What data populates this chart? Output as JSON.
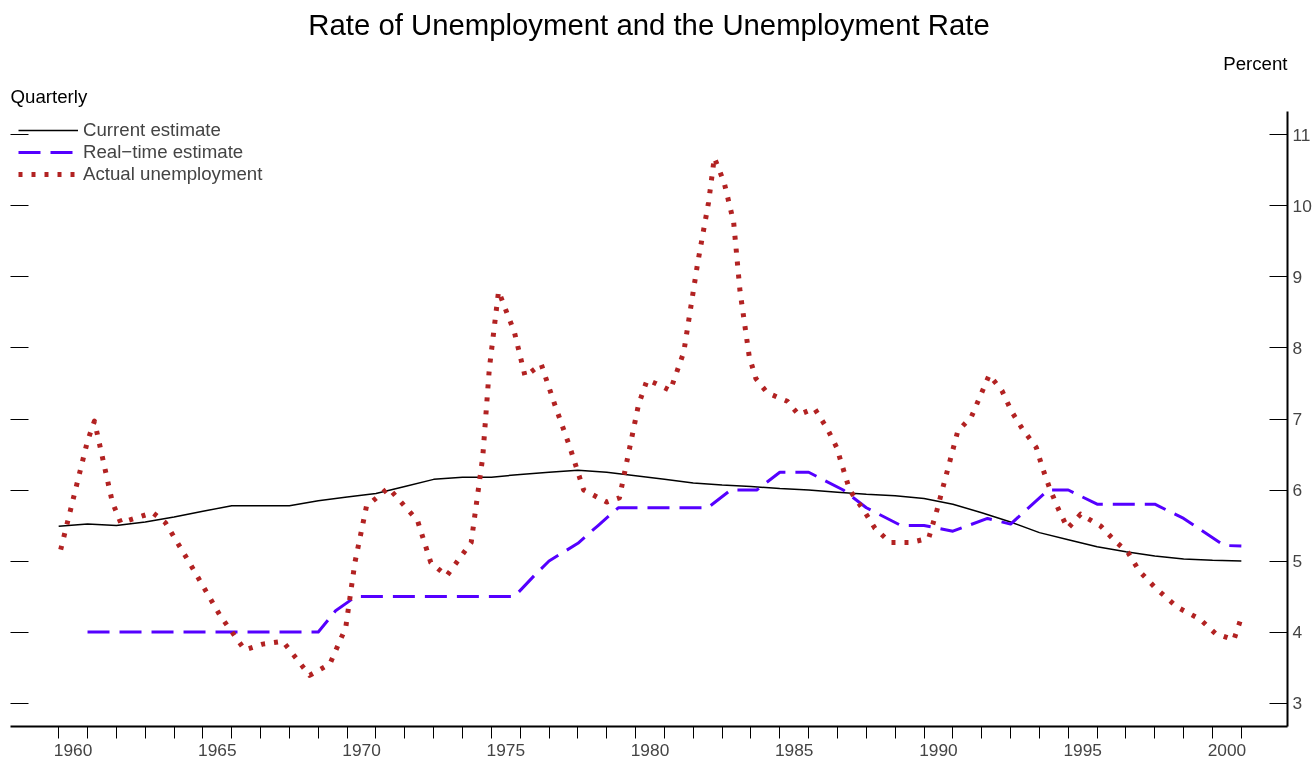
{
  "chart_data": {
    "type": "line",
    "title": "Rate of Unemployment and the Unemployment Rate",
    "ylabel": "Percent",
    "annotations": [
      "Quarterly"
    ],
    "xlim": [
      1958.33,
      2002.6
    ],
    "ylim": [
      2.67,
      11.33
    ],
    "xticks": [
      {
        "value": 1960,
        "label": null
      },
      {
        "value": 1961,
        "label": null
      },
      {
        "value": 1962,
        "label": null
      },
      {
        "value": 1963,
        "label": null
      },
      {
        "value": 1964,
        "label": null
      },
      {
        "value": 1965,
        "label": null
      },
      {
        "value": 1966,
        "label": null
      },
      {
        "value": 1967,
        "label": null
      },
      {
        "value": 1968,
        "label": null
      },
      {
        "value": 1969,
        "label": null
      },
      {
        "value": 1970,
        "label": null
      },
      {
        "value": 1971,
        "label": null
      },
      {
        "value": 1972,
        "label": null
      },
      {
        "value": 1973,
        "label": null
      },
      {
        "value": 1974,
        "label": null
      },
      {
        "value": 1975,
        "label": null
      },
      {
        "value": 1976,
        "label": null
      },
      {
        "value": 1977,
        "label": null
      },
      {
        "value": 1978,
        "label": null
      },
      {
        "value": 1979,
        "label": null
      },
      {
        "value": 1980,
        "label": null
      },
      {
        "value": 1981,
        "label": null
      },
      {
        "value": 1982,
        "label": null
      },
      {
        "value": 1983,
        "label": null
      },
      {
        "value": 1984,
        "label": null
      },
      {
        "value": 1985,
        "label": null
      },
      {
        "value": 1986,
        "label": null
      },
      {
        "value": 1987,
        "label": null
      },
      {
        "value": 1988,
        "label": null
      },
      {
        "value": 1989,
        "label": null
      },
      {
        "value": 1990,
        "label": null
      },
      {
        "value": 1991,
        "label": null
      },
      {
        "value": 1992,
        "label": null
      },
      {
        "value": 1993,
        "label": null
      },
      {
        "value": 1994,
        "label": null
      },
      {
        "value": 1995,
        "label": null
      },
      {
        "value": 1996,
        "label": null
      },
      {
        "value": 1997,
        "label": null
      },
      {
        "value": 1998,
        "label": null
      },
      {
        "value": 1999,
        "label": null
      },
      {
        "value": 2000,
        "label": null
      },
      {
        "value": 2001,
        "label": null
      },
      {
        "value": 1960.5,
        "label": "1960"
      },
      {
        "value": 1965.5,
        "label": "1965"
      },
      {
        "value": 1970.5,
        "label": "1970"
      },
      {
        "value": 1975.5,
        "label": "1975"
      },
      {
        "value": 1980.5,
        "label": "1980"
      },
      {
        "value": 1985.5,
        "label": "1985"
      },
      {
        "value": 1990.5,
        "label": "1990"
      },
      {
        "value": 1995.5,
        "label": "1995"
      },
      {
        "value": 2000.5,
        "label": "2000"
      }
    ],
    "yticks": [
      3,
      4,
      5,
      6,
      7,
      8,
      9,
      10,
      11
    ],
    "grid": false,
    "legend": "top left",
    "series": [
      {
        "name": "Current estimate",
        "color": "#000000",
        "line_style": "solid",
        "x": [
          1960,
          1961,
          1962,
          1963,
          1964,
          1965,
          1966,
          1967,
          1968,
          1969,
          1970,
          1971,
          1972,
          1973,
          1974,
          1975,
          1976,
          1977,
          1978,
          1979,
          1980,
          1981,
          1982,
          1983,
          1984,
          1985,
          1986,
          1987,
          1988,
          1989,
          1990,
          1991,
          1992,
          1993,
          1994,
          1995,
          1996,
          1997,
          1998,
          1999,
          2000,
          2001
        ],
        "values": [
          5.49,
          5.52,
          5.5,
          5.55,
          5.62,
          5.7,
          5.78,
          5.78,
          5.78,
          5.85,
          5.9,
          5.95,
          6.05,
          6.15,
          6.18,
          6.18,
          6.22,
          6.25,
          6.28,
          6.25,
          6.2,
          6.15,
          6.1,
          6.07,
          6.05,
          6.02,
          6.0,
          5.97,
          5.94,
          5.92,
          5.88,
          5.8,
          5.68,
          5.55,
          5.4,
          5.3,
          5.2,
          5.13,
          5.07,
          5.03,
          5.01,
          5.0
        ]
      },
      {
        "name": "Real−time estimate",
        "color": "#5500ff",
        "line_style": "dashed",
        "x": [
          1961,
          1969,
          1969.6,
          1970.3,
          1975.8,
          1976.5,
          1977,
          1978,
          1978.7,
          1979.4,
          1982.5,
          1983.3,
          1984.2,
          1985,
          1986,
          1987.2,
          1988,
          1989.2,
          1990,
          1991,
          1992.2,
          1993,
          1994.3,
          1995,
          1996,
          1998,
          1999,
          2000.4,
          2001
        ],
        "values": [
          4.0,
          4.0,
          4.3,
          4.5,
          4.5,
          4.8,
          5.0,
          5.25,
          5.5,
          5.75,
          5.75,
          6.0,
          6.0,
          6.25,
          6.25,
          6.0,
          5.75,
          5.5,
          5.5,
          5.42,
          5.6,
          5.52,
          6.0,
          6.0,
          5.8,
          5.8,
          5.6,
          5.22,
          5.21
        ]
      },
      {
        "name": "Actual unemployment",
        "color": "#b22222",
        "line_style": "dotted",
        "x": [
          1960.07,
          1961.0,
          1961.24,
          1961.86,
          1962.15,
          1963.26,
          1963.7,
          1964.5,
          1965.6,
          1966.45,
          1967.07,
          1967.77,
          1968.7,
          1969.4,
          1969.95,
          1970.27,
          1970.67,
          1971.43,
          1972.44,
          1972.9,
          1973.45,
          1974.3,
          1974.7,
          1974.93,
          1975.25,
          1975.8,
          1976.17,
          1976.73,
          1977.2,
          1977.7,
          1978.2,
          1979.0,
          1979.44,
          1980.1,
          1980.4,
          1980.7,
          1981.2,
          1981.67,
          1982.15,
          1982.53,
          1982.73,
          1983.07,
          1983.4,
          1983.62,
          1983.94,
          1984.17,
          1984.56,
          1985.26,
          1985.65,
          1986.2,
          1986.65,
          1986.97,
          1987.42,
          1987.9,
          1988.3,
          1988.83,
          1989.53,
          1990.16,
          1990.45,
          1990.93,
          1991.17,
          1991.64,
          1992.26,
          1992.7,
          1993.03,
          1993.41,
          1993.89,
          1994.1,
          1994.35,
          1994.67,
          1994.98,
          1995.43,
          1996.13,
          1996.6,
          1997.07,
          1997.46,
          1998.0,
          1998.78,
          1999.57,
          2000.1,
          2000.74,
          2000.98
        ],
        "values": [
          5.16,
          6.69,
          6.97,
          5.83,
          5.54,
          5.68,
          5.54,
          5.0,
          4.23,
          3.75,
          3.83,
          3.87,
          3.39,
          3.55,
          4.06,
          4.98,
          5.77,
          6.03,
          5.57,
          4.98,
          4.79,
          5.26,
          6.46,
          7.71,
          8.8,
          8.22,
          7.6,
          7.77,
          7.2,
          6.63,
          6.0,
          5.83,
          5.89,
          7.2,
          7.55,
          7.5,
          7.4,
          7.94,
          9.19,
          10.05,
          10.68,
          10.33,
          9.77,
          8.8,
          7.88,
          7.57,
          7.37,
          7.25,
          7.06,
          7.15,
          6.86,
          6.6,
          6.0,
          5.72,
          5.46,
          5.26,
          5.26,
          5.32,
          5.72,
          6.46,
          6.83,
          7.03,
          7.62,
          7.4,
          7.11,
          6.86,
          6.6,
          6.32,
          6.03,
          5.72,
          5.46,
          5.66,
          5.49,
          5.29,
          5.12,
          4.86,
          4.63,
          4.35,
          4.18,
          3.98,
          3.89,
          4.18
        ]
      }
    ]
  }
}
